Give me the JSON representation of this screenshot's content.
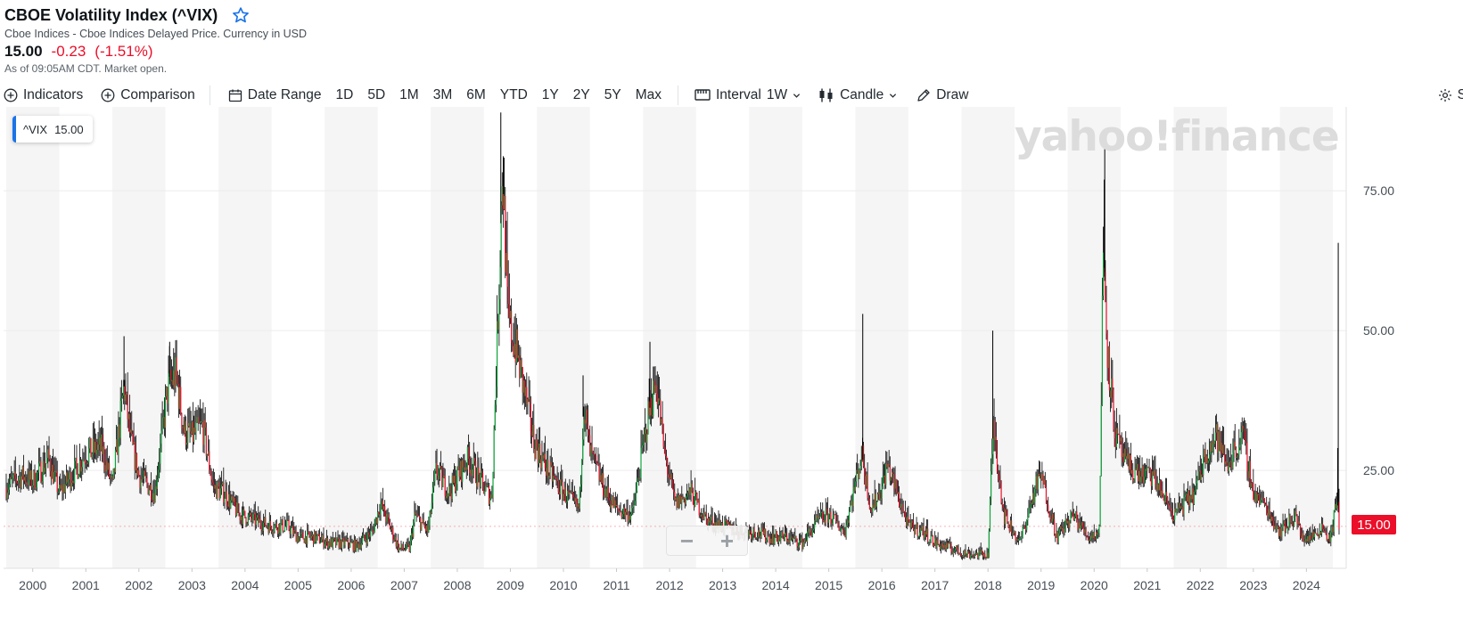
{
  "header": {
    "title": "CBOE Volatility Index (^VIX)",
    "subtitle": "Cboe Indices - Cboe Indices Delayed Price. Currency in USD",
    "price": "15.00",
    "change": "-0.23",
    "change_pct": "(-1.51%)",
    "as_of": "As of 09:05AM CDT. Market open."
  },
  "toolbar": {
    "indicators": "Indicators",
    "comparison": "Comparison",
    "date_range": "Date Range",
    "ranges": [
      "1D",
      "5D",
      "1M",
      "3M",
      "6M",
      "YTD",
      "1Y",
      "2Y",
      "5Y",
      "Max"
    ],
    "interval_label": "Interval",
    "interval_value": "1W",
    "chart_type": "Candle",
    "draw": "Draw",
    "settings": "S"
  },
  "legend": {
    "symbol": "^VIX",
    "value": "15.00"
  },
  "watermark": "yahoo!finance",
  "last_price_label": "15.00",
  "zoom": {
    "minus": "−",
    "plus": "+"
  },
  "colors": {
    "up": "#0ea33a",
    "down": "#eb0f29",
    "wick": "#000000",
    "accent": "#1a73e8",
    "band": "#f5f5f5"
  },
  "icons": [
    "star-icon",
    "plus-circle-icon",
    "calendar-icon",
    "interval-icon",
    "candle-icon",
    "chevron-down-icon",
    "pencil-icon",
    "gear-icon"
  ],
  "chart_data": {
    "type": "candlestick",
    "interval": "1W",
    "xlabel": "",
    "ylabel": "",
    "x_ticks": [
      "2000",
      "2001",
      "2002",
      "2003",
      "2004",
      "2005",
      "2006",
      "2007",
      "2008",
      "2009",
      "2010",
      "2011",
      "2012",
      "2013",
      "2014",
      "2015",
      "2016",
      "2017",
      "2018",
      "2019",
      "2020",
      "2021",
      "2022",
      "2023",
      "2024"
    ],
    "y_ticks": [
      25,
      50,
      75
    ],
    "y_tick_labels": [
      "25.00",
      "50.00",
      "75.00"
    ],
    "ylim": [
      7.5,
      90
    ],
    "xlim": [
      1999.45,
      2024.75
    ],
    "last": 15.0,
    "close_series": [
      [
        1999.5,
        22
      ],
      [
        1999.8,
        24
      ],
      [
        2000.0,
        23
      ],
      [
        2000.3,
        27
      ],
      [
        2000.5,
        21
      ],
      [
        2000.8,
        25
      ],
      [
        2001.0,
        28
      ],
      [
        2001.3,
        29
      ],
      [
        2001.5,
        22
      ],
      [
        2001.72,
        40
      ],
      [
        2001.85,
        30
      ],
      [
        2002.0,
        24
      ],
      [
        2002.3,
        21
      ],
      [
        2002.55,
        40
      ],
      [
        2002.7,
        42
      ],
      [
        2002.85,
        32
      ],
      [
        2003.0,
        31
      ],
      [
        2003.2,
        33
      ],
      [
        2003.4,
        22
      ],
      [
        2003.6,
        21
      ],
      [
        2003.9,
        17
      ],
      [
        2004.2,
        16
      ],
      [
        2004.5,
        15
      ],
      [
        2004.8,
        15
      ],
      [
        2005.0,
        13
      ],
      [
        2005.3,
        13
      ],
      [
        2005.6,
        12
      ],
      [
        2005.9,
        12
      ],
      [
        2006.1,
        11.5
      ],
      [
        2006.4,
        14
      ],
      [
        2006.55,
        19
      ],
      [
        2006.9,
        11
      ],
      [
        2007.1,
        11
      ],
      [
        2007.2,
        17
      ],
      [
        2007.45,
        14
      ],
      [
        2007.6,
        25
      ],
      [
        2007.85,
        21
      ],
      [
        2008.0,
        24
      ],
      [
        2008.2,
        27
      ],
      [
        2008.5,
        22
      ],
      [
        2008.65,
        20
      ],
      [
        2008.8,
        62
      ],
      [
        2008.85,
        80
      ],
      [
        2008.95,
        52
      ],
      [
        2009.1,
        47
      ],
      [
        2009.2,
        42
      ],
      [
        2009.45,
        30
      ],
      [
        2009.7,
        25
      ],
      [
        2010.0,
        21
      ],
      [
        2010.3,
        18
      ],
      [
        2010.38,
        37
      ],
      [
        2010.5,
        28
      ],
      [
        2010.8,
        21
      ],
      [
        2011.0,
        18
      ],
      [
        2011.3,
        17
      ],
      [
        2011.6,
        35
      ],
      [
        2011.75,
        41
      ],
      [
        2011.9,
        28
      ],
      [
        2012.1,
        19
      ],
      [
        2012.4,
        21
      ],
      [
        2012.7,
        16
      ],
      [
        2013.0,
        15
      ],
      [
        2013.3,
        14
      ],
      [
        2013.6,
        14
      ],
      [
        2013.9,
        13
      ],
      [
        2014.2,
        13
      ],
      [
        2014.5,
        12
      ],
      [
        2014.8,
        16
      ],
      [
        2015.0,
        17
      ],
      [
        2015.3,
        14
      ],
      [
        2015.62,
        28
      ],
      [
        2015.8,
        18
      ],
      [
        2016.0,
        22
      ],
      [
        2016.1,
        26
      ],
      [
        2016.5,
        15
      ],
      [
        2016.8,
        14
      ],
      [
        2017.0,
        12
      ],
      [
        2017.3,
        11
      ],
      [
        2017.6,
        10
      ],
      [
        2017.9,
        10
      ],
      [
        2018.0,
        10
      ],
      [
        2018.1,
        33
      ],
      [
        2018.3,
        17
      ],
      [
        2018.6,
        12
      ],
      [
        2018.9,
        22
      ],
      [
        2019.0,
        24
      ],
      [
        2019.3,
        13
      ],
      [
        2019.6,
        17
      ],
      [
        2019.9,
        13
      ],
      [
        2020.1,
        14
      ],
      [
        2020.17,
        66
      ],
      [
        2020.25,
        47
      ],
      [
        2020.4,
        31
      ],
      [
        2020.6,
        26
      ],
      [
        2020.9,
        24
      ],
      [
        2021.1,
        24
      ],
      [
        2021.5,
        17
      ],
      [
        2021.9,
        21
      ],
      [
        2022.1,
        28
      ],
      [
        2022.3,
        31
      ],
      [
        2022.5,
        26
      ],
      [
        2022.8,
        31
      ],
      [
        2023.0,
        21
      ],
      [
        2023.2,
        19
      ],
      [
        2023.5,
        14
      ],
      [
        2023.8,
        17
      ],
      [
        2023.9,
        13
      ],
      [
        2024.1,
        13
      ],
      [
        2024.3,
        15
      ],
      [
        2024.45,
        12.5
      ],
      [
        2024.58,
        20
      ],
      [
        2024.62,
        15
      ]
    ]
  }
}
